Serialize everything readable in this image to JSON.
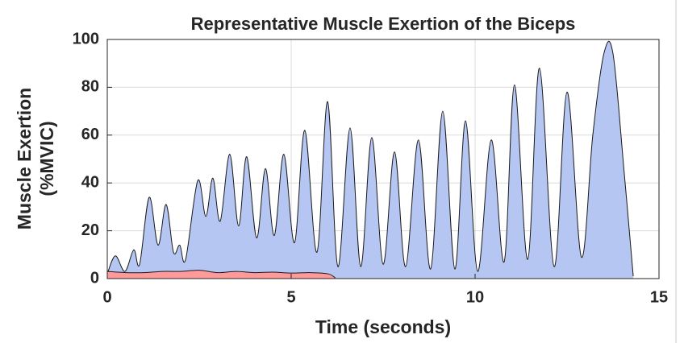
{
  "chart_data": {
    "type": "area",
    "title": "Representative Muscle Exertion of the Biceps",
    "xlabel": "Time (seconds)",
    "ylabel": [
      "Muscle Exertion",
      "(%MVIC)"
    ],
    "xlim": [
      0,
      15
    ],
    "xticks": [
      0,
      5,
      10,
      15
    ],
    "ylim": [
      0,
      100
    ],
    "yticks": [
      0,
      20,
      40,
      60,
      80,
      100
    ],
    "grid": true,
    "series": [
      {
        "color": "#b4c6f1",
        "x": [
          0,
          0.22,
          0.48,
          0.72,
          0.88,
          1.14,
          1.38,
          1.6,
          1.8,
          1.97,
          2.13,
          2.46,
          2.68,
          2.87,
          3.07,
          3.33,
          3.57,
          3.79,
          4.06,
          4.3,
          4.54,
          4.8,
          5.09,
          5.37,
          5.7,
          5.99,
          6.27,
          6.6,
          6.89,
          7.19,
          7.5,
          7.81,
          8.11,
          8.46,
          8.79,
          9.12,
          9.45,
          9.74,
          10.07,
          10.44,
          10.79,
          11.07,
          11.43,
          11.75,
          12.15,
          12.5,
          12.89,
          13.2,
          13.5,
          13.75,
          14.05,
          14.3
        ],
        "values": [
          2,
          9.5,
          3,
          12,
          6,
          34,
          14,
          31,
          11,
          14,
          8,
          41,
          26,
          42,
          24,
          52,
          22,
          51,
          17,
          46,
          18,
          52,
          15,
          62,
          11,
          74,
          5,
          63,
          5,
          59,
          6,
          53,
          5,
          58,
          4,
          70,
          4,
          66,
          3,
          58,
          7,
          81,
          8,
          88,
          5,
          78,
          9,
          60,
          94,
          94,
          45,
          1
        ]
      },
      {
        "color": "#ff9a9a",
        "x": [
          0,
          0.5,
          1,
          1.5,
          2,
          2.5,
          3,
          3.5,
          4,
          4.5,
          5,
          5.5,
          6,
          6.2
        ],
        "values": [
          3,
          2.5,
          2.5,
          3,
          3,
          3.5,
          2.5,
          3,
          2.5,
          2.7,
          2.3,
          2.5,
          2,
          0.3
        ]
      }
    ]
  }
}
